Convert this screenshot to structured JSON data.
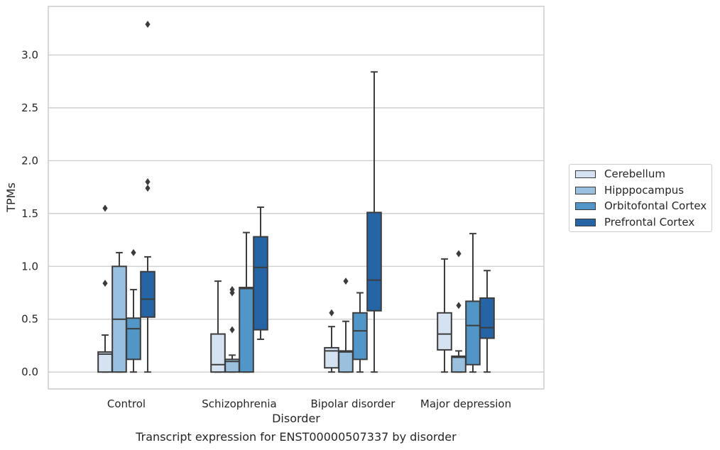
{
  "chart_data": {
    "type": "box",
    "xlabel": "Disorder",
    "ylabel": "TPMs",
    "caption": "Transcript expression for ENST00000507337 by disorder",
    "ylim": [
      -0.16,
      3.46
    ],
    "yticks": [
      "0.0",
      "0.5",
      "1.0",
      "1.5",
      "2.0",
      "2.5",
      "3.0"
    ],
    "ytick_values": [
      0,
      0.5,
      1.0,
      1.5,
      2.0,
      2.5,
      3.0
    ],
    "grid": "horizontal",
    "legend_position": "right",
    "categories": [
      "Control",
      "Schizophrenia",
      "Bipolar disorder",
      "Major depression"
    ],
    "series": [
      {
        "name": "Cerebellum",
        "color": "#d4e2f1",
        "boxes": [
          {
            "whisker_low": 0.0,
            "q1": 0.0,
            "median": 0.17,
            "q3": 0.19,
            "whisker_high": 0.35,
            "outliers": [
              0.84,
              1.55
            ]
          },
          {
            "whisker_low": 0.0,
            "q1": 0.0,
            "median": 0.07,
            "q3": 0.36,
            "whisker_high": 0.86,
            "outliers": []
          },
          {
            "whisker_low": 0.0,
            "q1": 0.04,
            "median": 0.2,
            "q3": 0.23,
            "whisker_high": 0.43,
            "outliers": [
              0.56
            ]
          },
          {
            "whisker_low": 0.0,
            "q1": 0.21,
            "median": 0.36,
            "q3": 0.56,
            "whisker_high": 1.07,
            "outliers": []
          }
        ]
      },
      {
        "name": "Hipppocampus",
        "color": "#99c0de",
        "boxes": [
          {
            "whisker_low": 0.0,
            "q1": 0.0,
            "median": 0.5,
            "q3": 1.0,
            "whisker_high": 1.13,
            "outliers": []
          },
          {
            "whisker_low": 0.0,
            "q1": 0.0,
            "median": 0.1,
            "q3": 0.12,
            "whisker_high": 0.16,
            "outliers": [
              0.4,
              0.75,
              0.78
            ]
          },
          {
            "whisker_low": 0.0,
            "q1": 0.0,
            "median": 0.19,
            "q3": 0.2,
            "whisker_high": 0.48,
            "outliers": [
              0.86
            ]
          },
          {
            "whisker_low": 0.0,
            "q1": 0.0,
            "median": 0.14,
            "q3": 0.15,
            "whisker_high": 0.2,
            "outliers": [
              0.63,
              1.12
            ]
          }
        ]
      },
      {
        "name": "Orbitofontal Cortex",
        "color": "#5196c6",
        "boxes": [
          {
            "whisker_low": 0.0,
            "q1": 0.12,
            "median": 0.41,
            "q3": 0.51,
            "whisker_high": 0.78,
            "outliers": [
              1.13
            ]
          },
          {
            "whisker_low": 0.0,
            "q1": 0.0,
            "median": 0.79,
            "q3": 0.8,
            "whisker_high": 1.32,
            "outliers": []
          },
          {
            "whisker_low": 0.0,
            "q1": 0.12,
            "median": 0.39,
            "q3": 0.56,
            "whisker_high": 0.75,
            "outliers": []
          },
          {
            "whisker_low": 0.0,
            "q1": 0.07,
            "median": 0.44,
            "q3": 0.67,
            "whisker_high": 1.31,
            "outliers": []
          }
        ]
      },
      {
        "name": "Prefrontal Cortex",
        "color": "#2565a6",
        "boxes": [
          {
            "whisker_low": 0.0,
            "q1": 0.52,
            "median": 0.69,
            "q3": 0.95,
            "whisker_high": 1.09,
            "outliers": [
              1.74,
              1.8,
              3.29
            ]
          },
          {
            "whisker_low": 0.31,
            "q1": 0.4,
            "median": 0.99,
            "q3": 1.28,
            "whisker_high": 1.56,
            "outliers": []
          },
          {
            "whisker_low": 0.0,
            "q1": 0.58,
            "median": 0.87,
            "q3": 1.51,
            "whisker_high": 2.84,
            "outliers": []
          },
          {
            "whisker_low": 0.0,
            "q1": 0.32,
            "median": 0.42,
            "q3": 0.7,
            "whisker_high": 0.96,
            "outliers": []
          }
        ]
      }
    ]
  }
}
